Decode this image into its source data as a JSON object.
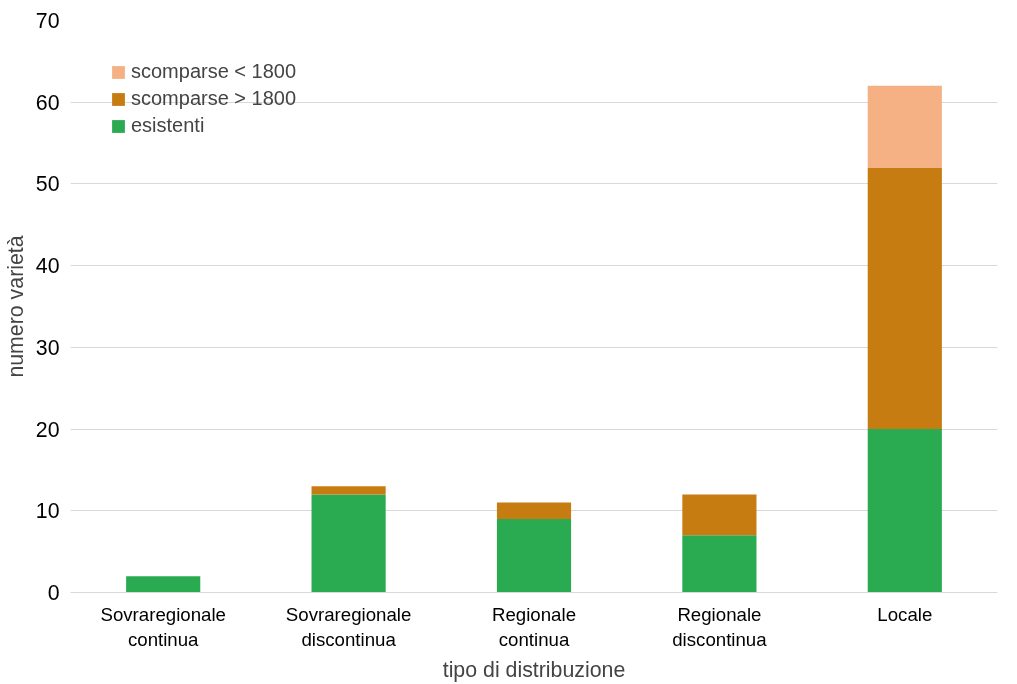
{
  "chart_data": {
    "type": "bar",
    "stacked": true,
    "xlabel": "tipo di distribuzione",
    "ylabel": "numero varietà",
    "categories": [
      "Sovraregionale\ncontinua",
      "Sovraregionale\ndiscontinua",
      "Regionale\ncontinua",
      "Regionale\ndiscontinua",
      "Locale"
    ],
    "series": [
      {
        "name": "esistenti",
        "color": "#2aab52",
        "values": [
          2,
          12,
          9,
          7,
          20
        ]
      },
      {
        "name": "scomparse > 1800",
        "color": "#c77c11",
        "values": [
          0,
          1,
          2,
          5,
          32
        ]
      },
      {
        "name": "scomparse < 1800",
        "color": "#f5b183",
        "values": [
          0,
          0,
          0,
          0,
          10
        ]
      }
    ],
    "ylim": [
      0,
      70
    ],
    "yticks": [
      0,
      10,
      20,
      30,
      40,
      50,
      60,
      70
    ],
    "grid": "y",
    "legend": "top left"
  }
}
